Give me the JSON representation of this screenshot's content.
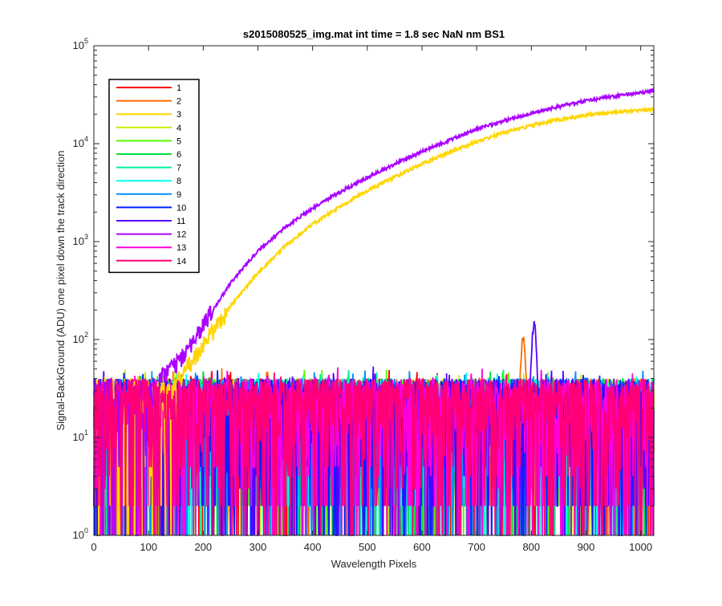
{
  "chart_data": {
    "type": "line",
    "title": "s2015080525_img.mat int time = 1.8 sec  NaN nm BS1",
    "xlabel": "Wavelength Pixels",
    "ylabel": "Signal-BackGround (ADU) one pixel down the track direction",
    "xlim": [
      0,
      1024
    ],
    "ylim": [
      1,
      100000
    ],
    "yscale": "log",
    "xticks": [
      "0",
      "100",
      "200",
      "300",
      "400",
      "500",
      "600",
      "700",
      "800",
      "900",
      "1000"
    ],
    "yticks": [
      {
        "base": "10",
        "exp": "0"
      },
      {
        "base": "10",
        "exp": "1"
      },
      {
        "base": "10",
        "exp": "2"
      },
      {
        "base": "10",
        "exp": "3"
      },
      {
        "base": "10",
        "exp": "4"
      },
      {
        "base": "10",
        "exp": "5"
      }
    ],
    "grid": false,
    "legend_position": "top-left",
    "series": [
      {
        "name": "1",
        "color": "#ff0000",
        "shape": "noise"
      },
      {
        "name": "2",
        "color": "#ff6a00",
        "shape": "noise",
        "peak": {
          "x": 785,
          "y": 100
        }
      },
      {
        "name": "3",
        "color": "#ffd500",
        "shape": "rising",
        "points": [
          [
            150,
            35
          ],
          [
            200,
            90
          ],
          [
            250,
            220
          ],
          [
            300,
            480
          ],
          [
            350,
            900
          ],
          [
            400,
            1500
          ],
          [
            450,
            2300
          ],
          [
            500,
            3300
          ],
          [
            550,
            4600
          ],
          [
            600,
            6200
          ],
          [
            650,
            8200
          ],
          [
            700,
            10500
          ],
          [
            750,
            13000
          ],
          [
            800,
            15300
          ],
          [
            850,
            17600
          ],
          [
            900,
            19600
          ],
          [
            950,
            21000
          ],
          [
            1000,
            22000
          ],
          [
            1024,
            22500
          ]
        ]
      },
      {
        "name": "4",
        "color": "#c8f000",
        "shape": "noise"
      },
      {
        "name": "5",
        "color": "#55ff00",
        "shape": "noise"
      },
      {
        "name": "6",
        "color": "#00e040",
        "shape": "noise"
      },
      {
        "name": "7",
        "color": "#00f0a0",
        "shape": "noise"
      },
      {
        "name": "8",
        "color": "#00ffee",
        "shape": "noise"
      },
      {
        "name": "9",
        "color": "#0090ff",
        "shape": "noise"
      },
      {
        "name": "10",
        "color": "#0022ff",
        "shape": "noise"
      },
      {
        "name": "11",
        "color": "#5500ff",
        "shape": "noise",
        "peak": {
          "x": 805,
          "y": 145
        }
      },
      {
        "name": "12",
        "color": "#aa00ff",
        "shape": "rising",
        "points": [
          [
            120,
            40
          ],
          [
            150,
            55
          ],
          [
            200,
            140
          ],
          [
            250,
            380
          ],
          [
            300,
            800
          ],
          [
            350,
            1400
          ],
          [
            400,
            2200
          ],
          [
            450,
            3200
          ],
          [
            500,
            4500
          ],
          [
            550,
            6200
          ],
          [
            600,
            8300
          ],
          [
            650,
            10800
          ],
          [
            700,
            14000
          ],
          [
            750,
            17200
          ],
          [
            800,
            20500
          ],
          [
            850,
            24000
          ],
          [
            900,
            27500
          ],
          [
            950,
            30500
          ],
          [
            1000,
            33000
          ],
          [
            1024,
            35000
          ]
        ]
      },
      {
        "name": "13",
        "color": "#ff00dd",
        "shape": "noise"
      },
      {
        "name": "14",
        "color": "#ff0077",
        "shape": "noise"
      }
    ]
  }
}
